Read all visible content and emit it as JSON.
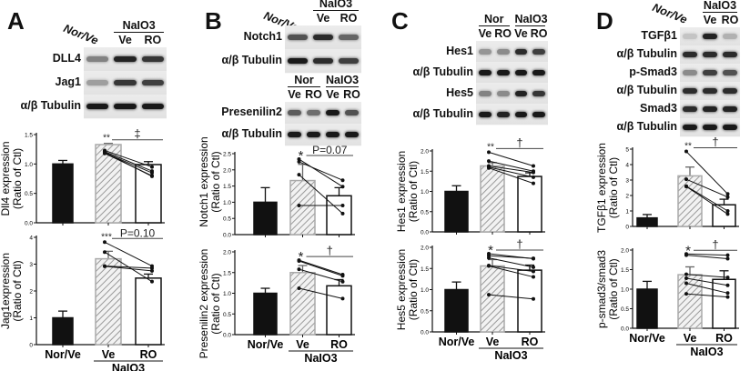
{
  "panels": [
    {
      "letter": "A",
      "blots": [
        {
          "rotated": "Nor/Ve",
          "groups": [
            {
              "label": "",
              "lanes": [
                ""
              ]
            },
            {
              "label": "NaIO3",
              "lanes": [
                "Ve",
                "RO"
              ]
            }
          ],
          "rows": [
            {
              "label": "DLL4",
              "bands": [
                0.45,
                0.95,
                0.85
              ]
            },
            {
              "label": "Jag1",
              "bands": [
                0.3,
                0.85,
                0.8
              ]
            },
            {
              "label": "α/β Tubulin",
              "bands": [
                1,
                1,
                1
              ]
            }
          ]
        }
      ]
    },
    {
      "letter": "B",
      "blots": [
        {
          "rotated": "Nor/Ve",
          "groups": [
            {
              "label": "",
              "lanes": [
                ""
              ]
            },
            {
              "label": "NaIO3",
              "lanes": [
                "Ve",
                "RO"
              ]
            }
          ],
          "rows": [
            {
              "label": "Notch1",
              "bands": [
                0.7,
                0.9,
                0.6
              ]
            },
            {
              "label": "α/β Tubulin",
              "bands": [
                1,
                0.9,
                0.8
              ]
            }
          ]
        },
        {
          "rotated": "",
          "groups": [
            {
              "label": "Nor",
              "lanes": [
                "Ve",
                "RO"
              ]
            },
            {
              "label": "NaIO3",
              "lanes": [
                "Ve",
                "RO"
              ]
            }
          ],
          "rows": [
            {
              "label": "Presenilin2",
              "bands": [
                0.65,
                0.55,
                1,
                0.7
              ]
            },
            {
              "label": "α/β Tubulin",
              "bands": [
                1,
                1,
                1,
                1
              ]
            }
          ]
        }
      ]
    },
    {
      "letter": "C",
      "blots": [
        {
          "rotated": "",
          "groups": [
            {
              "label": "Nor",
              "lanes": [
                "Ve",
                "RO"
              ]
            },
            {
              "label": "NaIO3",
              "lanes": [
                "Ve",
                "RO"
              ]
            }
          ],
          "rows": [
            {
              "label": "Hes1",
              "bands": [
                0.35,
                0.4,
                0.9,
                0.8
              ]
            },
            {
              "label": "α/β Tubulin",
              "bands": [
                1,
                1,
                1,
                1
              ]
            },
            {
              "label": "Hes5",
              "bands": [
                0.45,
                0.4,
                0.95,
                0.85
              ]
            },
            {
              "label": "α/β Tubulin",
              "bands": [
                1,
                0.95,
                1,
                1
              ]
            }
          ]
        }
      ]
    },
    {
      "letter": "D",
      "blots": [
        {
          "rotated": "Nor/Ve",
          "groups": [
            {
              "label": "",
              "lanes": [
                ""
              ]
            },
            {
              "label": "NaIO3",
              "lanes": [
                "Ve",
                "RO"
              ]
            }
          ],
          "rows": [
            {
              "label": "TGFβ1",
              "bands": [
                0.1,
                0.95,
                0.2
              ]
            },
            {
              "label": "α/β Tubulin",
              "bands": [
                0.9,
                0.9,
                0.9
              ]
            },
            {
              "label": "p-Smad3",
              "bands": [
                0.4,
                0.8,
                0.7
              ]
            },
            {
              "label": "α/β Tubulin",
              "bands": [
                0.9,
                0.9,
                0.9
              ]
            },
            {
              "label": "Smad3",
              "bands": [
                0.9,
                0.95,
                0.95
              ]
            },
            {
              "label": "α/β Tubulin",
              "bands": [
                1,
                1,
                1
              ]
            }
          ]
        }
      ]
    }
  ],
  "chart_data": [
    {
      "id": "A1",
      "type": "bar",
      "ylabel": [
        "Dll4 expression",
        "(Ratio of Ctl)"
      ],
      "categories": [
        "Nor/Ve",
        "Ve",
        "RO"
      ],
      "group_label": "NaIO3",
      "show_xlabels": false,
      "values": [
        1.0,
        1.33,
        0.99
      ],
      "errors": [
        0.06,
        0.02,
        0.05
      ],
      "ylim": [
        0,
        1.5
      ],
      "yticks": [
        "0.0",
        "0.5",
        "1.0",
        "1.5"
      ],
      "paired": {
        "Ve": [
          1.23,
          1.21,
          1.19,
          1.18,
          1.2
        ],
        "RO": [
          0.95,
          0.88,
          0.85,
          0.8,
          0.79
        ]
      },
      "sig_vs_control": "**",
      "sig_ve_vs_ro": "‡"
    },
    {
      "id": "A2",
      "type": "bar",
      "ylabel": [
        "Jag1expression",
        "(Ratio of Ctl)"
      ],
      "categories": [
        "Nor/Ve",
        "Ve",
        "RO"
      ],
      "group_label": "NaIO3",
      "show_xlabels": true,
      "values": [
        1.0,
        3.2,
        2.48
      ],
      "errors": [
        0.25,
        0.28,
        0.15
      ],
      "ylim": [
        0,
        4
      ],
      "yticks": [
        "0",
        "1",
        "2",
        "3",
        "4"
      ],
      "paired": {
        "Ve": [
          3.82,
          3.45,
          2.93,
          2.92
        ],
        "RO": [
          2.93,
          2.35,
          2.85,
          2.75
        ]
      },
      "sig_vs_control": "***",
      "sig_ve_vs_ro": "P=0.10"
    },
    {
      "id": "B1",
      "type": "bar",
      "ylabel": [
        "Notch1 expression",
        "(Ratio of Ctl)"
      ],
      "categories": [
        "Nor/Ve",
        "Ve",
        "RO"
      ],
      "group_label": "NaIO3",
      "show_xlabels": false,
      "values": [
        1.0,
        1.67,
        1.2
      ],
      "errors": [
        0.45,
        0.5,
        0.25
      ],
      "ylim": [
        0,
        2.5
      ],
      "yticks": [
        "0.0",
        "0.5",
        "1.0",
        "1.5",
        "2.0",
        "2.5"
      ],
      "paired": {
        "Ve": [
          2.33,
          2.25,
          1.85,
          0.9
        ],
        "RO": [
          1.48,
          1.68,
          0.65,
          0.9
        ]
      },
      "sig_vs_control": "*",
      "sig_ve_vs_ro": "P=0.07"
    },
    {
      "id": "B2",
      "type": "bar",
      "ylabel": [
        "Presenilin2 expression",
        "(Ratio of Ctl)"
      ],
      "categories": [
        "Nor/Ve",
        "Ve",
        "RO"
      ],
      "group_label": "NaIO3",
      "show_xlabels": true,
      "values": [
        1.0,
        1.5,
        1.18
      ],
      "errors": [
        0.12,
        0.17,
        0.15
      ],
      "ylim": [
        0,
        2
      ],
      "yticks": [
        "0.0",
        "0.5",
        "1.0",
        "1.5",
        "2.0"
      ],
      "paired": {
        "Ve": [
          1.8,
          1.78,
          1.58,
          1.12
        ],
        "RO": [
          1.45,
          1.42,
          1.28,
          0.87
        ]
      },
      "sig_vs_control": "*",
      "sig_ve_vs_ro": "†"
    },
    {
      "id": "C1",
      "type": "bar",
      "ylabel": [
        "Hes1 expression",
        "(Ratio of Ctl)"
      ],
      "categories": [
        "Nor/Ve",
        "Ve",
        "RO"
      ],
      "group_label": "NaIO3",
      "show_xlabels": false,
      "values": [
        1.0,
        1.63,
        1.37
      ],
      "errors": [
        0.14,
        0.08,
        0.09
      ],
      "ylim": [
        0,
        2
      ],
      "yticks": [
        "0.0",
        "0.5",
        "1.0",
        "1.5",
        "2.0"
      ],
      "paired": {
        "Ve": [
          1.97,
          1.75,
          1.63,
          1.6,
          1.58
        ],
        "RO": [
          1.63,
          1.5,
          1.47,
          1.35,
          1.2
        ]
      },
      "sig_vs_control": "**",
      "sig_ve_vs_ro": "†"
    },
    {
      "id": "C2",
      "type": "bar",
      "ylabel": [
        "Hes5 expression",
        "(Ratio of Ctl)"
      ],
      "categories": [
        "Nor/Ve",
        "Ve",
        "RO"
      ],
      "group_label": "NaIO3",
      "show_xlabels": true,
      "values": [
        1.0,
        1.56,
        1.46
      ],
      "errors": [
        0.18,
        0.15,
        0.12
      ],
      "ylim": [
        0,
        2
      ],
      "yticks": [
        "0.0",
        "0.5",
        "1.0",
        "1.5",
        "2.0"
      ],
      "paired": {
        "Ve": [
          1.85,
          1.8,
          1.75,
          1.57,
          1.56,
          0.88
        ],
        "RO": [
          1.73,
          1.74,
          1.53,
          1.43,
          1.3,
          0.78
        ]
      },
      "sig_vs_control": "*",
      "sig_ve_vs_ro": "†"
    },
    {
      "id": "D1",
      "type": "bar",
      "ylabel": [
        "TGFβ1 expression",
        "(Ratio of Ctl)"
      ],
      "categories": [
        "Nor/Ve",
        "Ve",
        "RO"
      ],
      "group_label": "NaIO3",
      "show_xlabels": false,
      "values": [
        0.55,
        3.27,
        1.4
      ],
      "errors": [
        0.22,
        0.57,
        0.36
      ],
      "ylim": [
        0,
        5
      ],
      "yticks": [
        "0",
        "1",
        "2",
        "3",
        "4",
        "5"
      ],
      "paired": {
        "Ve": [
          4.85,
          3.05,
          2.6,
          2.58
        ],
        "RO": [
          2.1,
          1.9,
          1.0,
          0.8
        ]
      },
      "sig_vs_control": "**",
      "sig_ve_vs_ro": "†"
    },
    {
      "id": "D2",
      "type": "bar",
      "ylabel": [
        "p-smad3/smad3",
        "(Ratio of Ctl)"
      ],
      "categories": [
        "Nor/Ve",
        "Ve",
        "RO"
      ],
      "group_label": "NaIO3",
      "show_xlabels": true,
      "values": [
        1.0,
        1.37,
        1.25
      ],
      "errors": [
        0.2,
        0.2,
        0.22
      ],
      "ylim": [
        0,
        2
      ],
      "yticks": [
        "0.0",
        "0.5",
        "1.0",
        "1.5",
        "2.0"
      ],
      "paired": {
        "Ve": [
          1.9,
          1.87,
          1.38,
          1.28,
          1.15,
          0.88
        ],
        "RO": [
          1.87,
          1.78,
          1.3,
          1.1,
          0.9,
          0.8
        ]
      },
      "sig_vs_control": "*",
      "sig_ve_vs_ro": "†"
    }
  ]
}
